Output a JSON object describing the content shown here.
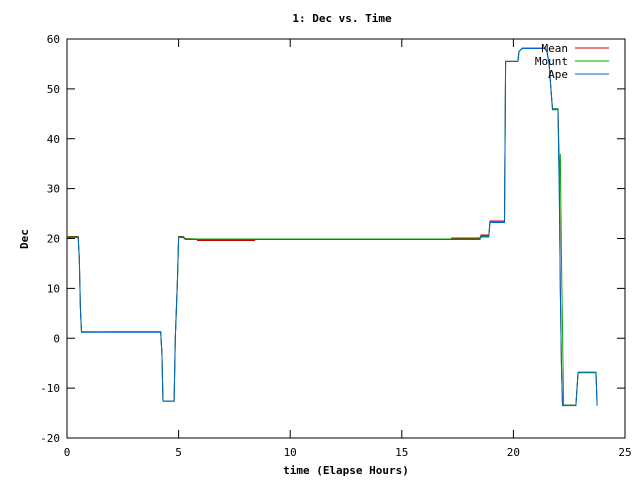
{
  "chart_data": {
    "type": "line",
    "title": "1: Dec vs. Time",
    "xlabel": "time (Elapse Hours)",
    "ylabel": "Dec",
    "xlim": [
      0,
      25
    ],
    "ylim": [
      -20,
      60
    ],
    "x_ticks": [
      0,
      5,
      10,
      15,
      20,
      25
    ],
    "y_ticks": [
      -20,
      -10,
      0,
      10,
      20,
      30,
      40,
      50,
      60
    ],
    "x_tick_labels": [
      "0",
      "5",
      "10",
      "15",
      "20",
      "25"
    ],
    "y_tick_labels": [
      "-20",
      "-10",
      "0",
      "10",
      "20",
      "30",
      "40",
      "50",
      "60"
    ],
    "grid": false,
    "legend_position": "top-right",
    "series": [
      {
        "name": "Mean",
        "color": "#cc0000",
        "points": [
          [
            0,
            20.4
          ],
          [
            0.5,
            20.4
          ],
          [
            0.55,
            16
          ],
          [
            0.6,
            6
          ],
          [
            0.65,
            1.3
          ],
          [
            2.0,
            1.3
          ],
          [
            4.2,
            1.3
          ],
          [
            4.25,
            -3
          ],
          [
            4.3,
            -12.6
          ],
          [
            4.8,
            -12.6
          ],
          [
            4.85,
            0
          ],
          [
            4.95,
            12
          ],
          [
            5.0,
            20.4
          ],
          [
            5.2,
            20.4
          ],
          [
            5.3,
            20.0
          ],
          [
            5.8,
            19.9
          ],
          [
            5.85,
            19.6
          ],
          [
            8.4,
            19.6
          ],
          [
            8.45,
            19.9
          ],
          [
            17.2,
            19.9
          ],
          [
            17.25,
            20.1
          ],
          [
            18.5,
            20.1
          ],
          [
            18.55,
            20.7
          ],
          [
            18.9,
            20.7
          ],
          [
            18.95,
            23.5
          ],
          [
            19.6,
            23.5
          ],
          [
            19.65,
            55.5
          ],
          [
            20.2,
            55.5
          ],
          [
            20.25,
            57.5
          ],
          [
            20.4,
            58.2
          ],
          [
            21.4,
            58.2
          ],
          [
            21.5,
            57.5
          ],
          [
            21.6,
            55.0
          ],
          [
            21.7,
            49.0
          ],
          [
            21.75,
            46.0
          ],
          [
            22.0,
            46.0
          ],
          [
            22.05,
            35
          ],
          [
            22.1,
            10
          ],
          [
            22.15,
            -5
          ],
          [
            22.2,
            -13.4
          ],
          [
            22.8,
            -13.4
          ],
          [
            22.85,
            -10
          ],
          [
            22.9,
            -6.8
          ],
          [
            23.7,
            -6.8
          ],
          [
            23.75,
            -13.4
          ]
        ]
      },
      {
        "name": "Mount",
        "color": "#00aa00",
        "points": [
          [
            0,
            20.3
          ],
          [
            0.5,
            20.3
          ],
          [
            0.55,
            16
          ],
          [
            0.6,
            6
          ],
          [
            0.65,
            1.2
          ],
          [
            2.0,
            1.3
          ],
          [
            4.2,
            1.3
          ],
          [
            4.25,
            -3
          ],
          [
            4.3,
            -12.6
          ],
          [
            4.8,
            -12.6
          ],
          [
            4.85,
            0
          ],
          [
            4.95,
            12
          ],
          [
            5.0,
            20.3
          ],
          [
            5.2,
            20.3
          ],
          [
            5.3,
            19.9
          ],
          [
            17.2,
            19.9
          ],
          [
            18.5,
            19.9
          ],
          [
            18.55,
            20.5
          ],
          [
            18.9,
            20.5
          ],
          [
            18.95,
            23.4
          ],
          [
            19.6,
            23.4
          ],
          [
            19.65,
            55.5
          ],
          [
            20.2,
            55.5
          ],
          [
            20.25,
            57.5
          ],
          [
            20.4,
            58.2
          ],
          [
            21.4,
            58.2
          ],
          [
            21.5,
            57.5
          ],
          [
            21.6,
            55.0
          ],
          [
            21.7,
            49.0
          ],
          [
            21.75,
            46.0
          ],
          [
            22.0,
            46.0
          ],
          [
            22.05,
            31
          ],
          [
            22.1,
            37
          ],
          [
            22.15,
            17
          ],
          [
            22.2,
            2
          ],
          [
            22.25,
            -13.4
          ],
          [
            22.8,
            -13.4
          ],
          [
            22.85,
            -10
          ],
          [
            22.9,
            -6.8
          ],
          [
            23.7,
            -6.8
          ],
          [
            23.75,
            -13.4
          ]
        ]
      },
      {
        "name": "Ape",
        "color": "#0066cc",
        "points": [
          [
            0,
            20.2
          ],
          [
            0.5,
            20.2
          ],
          [
            0.55,
            16
          ],
          [
            0.6,
            6
          ],
          [
            0.65,
            1.2
          ],
          [
            2.0,
            1.2
          ],
          [
            4.2,
            1.2
          ],
          [
            4.25,
            -3
          ],
          [
            4.3,
            -12.6
          ],
          [
            4.8,
            -12.6
          ],
          [
            4.85,
            0
          ],
          [
            4.95,
            12
          ],
          [
            5.0,
            20.2
          ],
          [
            5.2,
            20.2
          ],
          [
            5.3,
            19.8
          ],
          [
            17.2,
            19.8
          ],
          [
            18.5,
            19.8
          ],
          [
            18.55,
            20.3
          ],
          [
            18.9,
            20.3
          ],
          [
            18.95,
            23.2
          ],
          [
            19.6,
            23.2
          ],
          [
            19.65,
            55.5
          ],
          [
            20.2,
            55.5
          ],
          [
            20.25,
            57.5
          ],
          [
            20.4,
            58.1
          ],
          [
            21.4,
            58.1
          ],
          [
            21.5,
            57.5
          ],
          [
            21.6,
            55.0
          ],
          [
            21.7,
            49.0
          ],
          [
            21.75,
            45.8
          ],
          [
            22.0,
            45.8
          ],
          [
            22.05,
            30
          ],
          [
            22.1,
            10
          ],
          [
            22.15,
            -5
          ],
          [
            22.2,
            -13.5
          ],
          [
            22.8,
            -13.5
          ],
          [
            22.85,
            -10
          ],
          [
            22.9,
            -6.9
          ],
          [
            23.7,
            -6.9
          ],
          [
            23.75,
            -13.5
          ]
        ]
      }
    ]
  }
}
